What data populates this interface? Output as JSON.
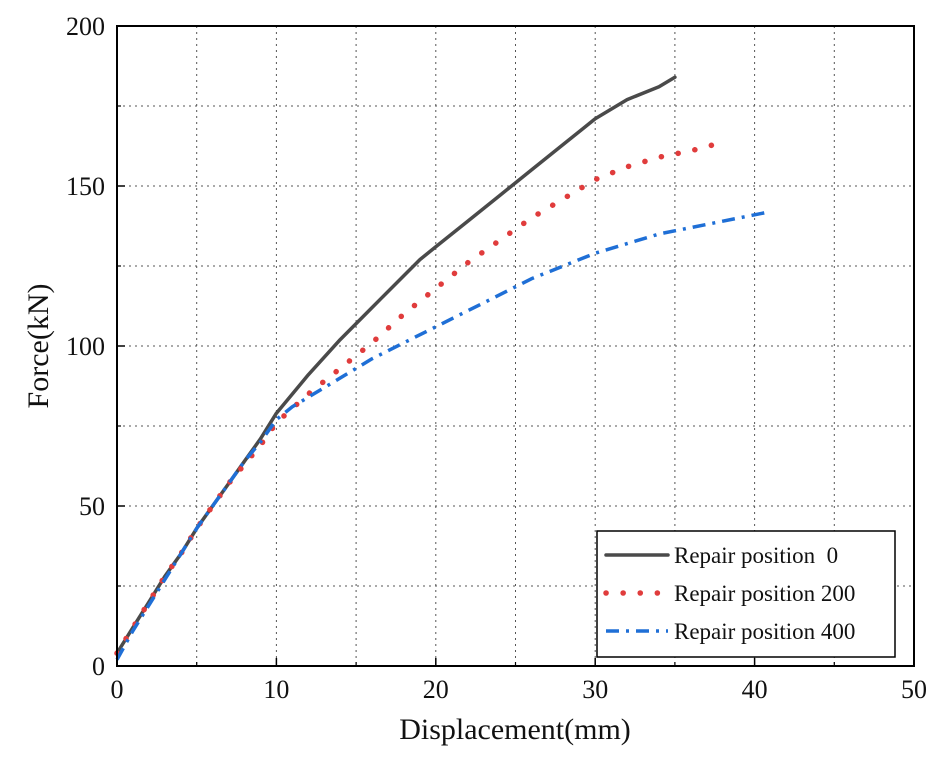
{
  "chart_data": {
    "type": "line",
    "title": "",
    "xlabel": "Displacement(mm)",
    "ylabel": "Force(kN)",
    "xlim": [
      0,
      50
    ],
    "ylim": [
      0,
      200
    ],
    "xticks": [
      0,
      10,
      20,
      30,
      40,
      50
    ],
    "yticks": [
      0,
      50,
      100,
      150,
      200
    ],
    "x_minor_grid": [
      5,
      15,
      25,
      35,
      45
    ],
    "y_minor_grid": [
      25,
      75,
      125,
      175
    ],
    "grid": true,
    "legend_position": "bottom-right",
    "series": [
      {
        "name": "Repair position  0",
        "style": "solid",
        "color": "#4a4a4a",
        "x": [
          0,
          1,
          2,
          3,
          4,
          5,
          6,
          7,
          8,
          9,
          10,
          12,
          14,
          16,
          18,
          19,
          20,
          22,
          24,
          26,
          28,
          30,
          32,
          34,
          35
        ],
        "y": [
          4,
          12,
          20,
          28,
          35,
          43,
          50,
          57,
          64,
          71,
          79,
          91,
          102,
          112,
          122,
          127,
          131,
          139,
          147,
          155,
          163,
          171,
          177,
          181,
          184
        ]
      },
      {
        "name": "Repair position 200",
        "style": "dotted",
        "color": "#e03c3c",
        "x": [
          0,
          1,
          2,
          3,
          4,
          5,
          6,
          7,
          8,
          9,
          10,
          12,
          14,
          16,
          18,
          20,
          22,
          24,
          26,
          28,
          30,
          32,
          34,
          36,
          37.5
        ],
        "y": [
          4,
          12,
          20,
          28,
          35,
          43,
          50,
          57,
          63,
          69,
          76,
          85,
          93,
          101,
          110,
          118,
          126,
          133,
          140,
          146,
          152,
          156,
          159,
          161,
          163
        ]
      },
      {
        "name": "Repair position 400",
        "style": "dash-dot",
        "color": "#1f6fd6",
        "x": [
          0,
          1,
          2,
          3,
          4,
          5,
          6,
          7,
          8,
          9,
          10,
          11,
          12,
          14,
          16,
          18,
          20,
          22,
          24,
          26,
          28,
          30,
          32,
          34,
          36,
          38,
          41
        ],
        "y": [
          2,
          11,
          19,
          27,
          35,
          43,
          50,
          57,
          64,
          70,
          77,
          81,
          84,
          90,
          96,
          101,
          106,
          111,
          116,
          121,
          125,
          129,
          132,
          135,
          137,
          139,
          142
        ]
      }
    ]
  }
}
